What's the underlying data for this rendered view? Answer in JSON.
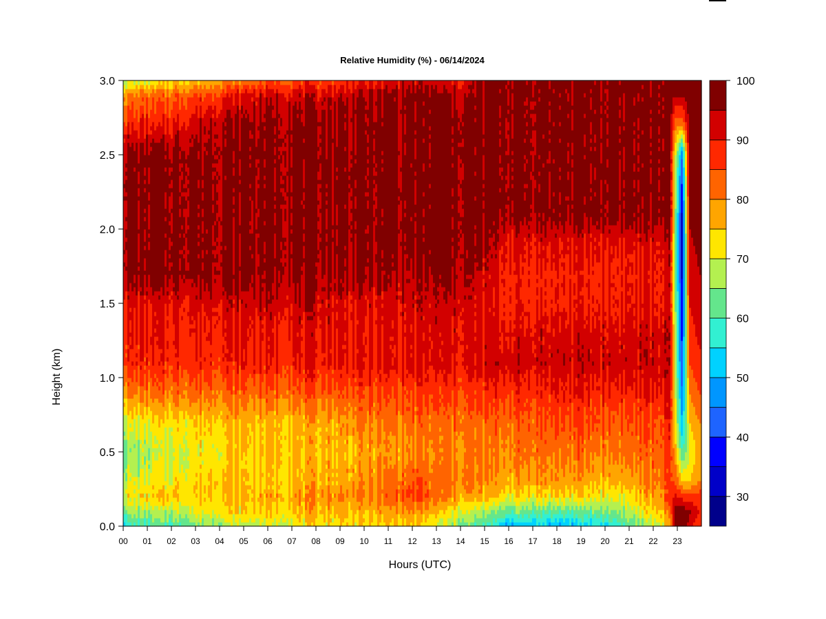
{
  "chart_data": {
    "type": "heatmap",
    "title": "Relative Humidity (%) - 06/14/2024",
    "xlabel": "Hours (UTC)",
    "ylabel": "Height (km)",
    "xlim": [
      0,
      24
    ],
    "ylim": [
      0,
      3
    ],
    "x_ticks": [
      "00",
      "01",
      "02",
      "03",
      "04",
      "05",
      "06",
      "07",
      "08",
      "09",
      "10",
      "11",
      "12",
      "13",
      "14",
      "15",
      "16",
      "17",
      "18",
      "19",
      "20",
      "21",
      "22",
      "23"
    ],
    "y_ticks": [
      "0.0",
      "0.5",
      "1.0",
      "1.5",
      "2.0",
      "2.5",
      "3.0"
    ],
    "colorbar": {
      "range": [
        25,
        100
      ],
      "labels": [
        "30",
        "40",
        "50",
        "60",
        "70",
        "80",
        "90",
        "100"
      ],
      "levels": [
        25,
        30,
        35,
        40,
        45,
        50,
        55,
        60,
        65,
        70,
        75,
        80,
        85,
        90,
        95,
        100
      ],
      "colors": [
        "#00008B",
        "#0000C8",
        "#0000FF",
        "#1E64FF",
        "#0096FF",
        "#00D2FF",
        "#32F0D2",
        "#64E68C",
        "#B4F050",
        "#FFE600",
        "#FFA500",
        "#FF6400",
        "#FF2800",
        "#D20000",
        "#800000"
      ]
    },
    "profile_heights_km": [
      0.0,
      0.1,
      0.2,
      0.3,
      0.5,
      0.7,
      0.9,
      1.1,
      1.3,
      1.5,
      1.7,
      1.9,
      2.1,
      2.3,
      2.5,
      2.7,
      2.9,
      3.0
    ],
    "profiles": [
      {
        "hour": 0,
        "rh": [
          57,
          65,
          72,
          69,
          64,
          70,
          80,
          88,
          89,
          91,
          97,
          97,
          97,
          97,
          97,
          88,
          80,
          67
        ]
      },
      {
        "hour": 2,
        "rh": [
          60,
          68,
          75,
          72,
          69,
          73,
          82,
          88,
          89,
          91,
          97,
          97,
          97,
          97,
          97,
          90,
          83,
          73
        ]
      },
      {
        "hour": 4,
        "rh": [
          66,
          74,
          75,
          76,
          73,
          76,
          83,
          89,
          90,
          93,
          97,
          97,
          97,
          97,
          97,
          96,
          88,
          78
        ]
      },
      {
        "hour": 6,
        "rh": [
          70,
          73,
          77,
          74,
          76,
          76,
          83,
          89,
          90,
          93,
          97,
          97,
          97,
          97,
          97,
          97,
          93,
          84
        ]
      },
      {
        "hour": 8,
        "rh": [
          72,
          77,
          79,
          77,
          76,
          77,
          84,
          90,
          91,
          93,
          96,
          97,
          97,
          97,
          97,
          97,
          93,
          86
        ]
      },
      {
        "hour": 10,
        "rh": [
          73,
          76,
          80,
          78,
          77,
          80,
          85,
          90,
          90,
          91,
          96,
          97,
          97,
          97,
          97,
          97,
          95,
          88
        ]
      },
      {
        "hour": 12,
        "rh": [
          75,
          79,
          86,
          84,
          79,
          82,
          86,
          91,
          91,
          92,
          94,
          97,
          97,
          97,
          97,
          97,
          97,
          92
        ]
      },
      {
        "hour": 13,
        "rh": [
          69,
          75,
          82,
          82,
          80,
          82,
          86,
          91,
          91,
          93,
          96,
          97,
          97,
          97,
          97,
          97,
          97,
          92
        ]
      },
      {
        "hour": 14,
        "rh": [
          64,
          71,
          78,
          81,
          80,
          82,
          86,
          91,
          91,
          93,
          96,
          97,
          97,
          97,
          97,
          97,
          94,
          89
        ]
      },
      {
        "hour": 15,
        "rh": [
          59,
          66,
          76,
          79,
          80,
          82,
          87,
          92,
          91,
          91,
          92,
          96,
          97,
          97,
          97,
          97,
          97,
          97
        ]
      },
      {
        "hour": 16,
        "rh": [
          50,
          62,
          73,
          77,
          81,
          83,
          88,
          93,
          91,
          89,
          89,
          91,
          97,
          97,
          97,
          97,
          97,
          97
        ]
      },
      {
        "hour": 17,
        "rh": [
          53,
          63,
          73,
          79,
          82,
          84,
          88,
          93,
          92,
          89,
          89,
          91,
          97,
          97,
          97,
          97,
          97,
          97
        ]
      },
      {
        "hour": 18,
        "rh": [
          50,
          62,
          73,
          78,
          82,
          85,
          89,
          93,
          92,
          89,
          89,
          91,
          97,
          97,
          97,
          97,
          97,
          97
        ]
      },
      {
        "hour": 19,
        "rh": [
          52,
          62,
          73,
          77,
          82,
          85,
          89,
          93,
          92,
          89,
          89,
          91,
          97,
          97,
          97,
          97,
          97,
          97
        ]
      },
      {
        "hour": 20,
        "rh": [
          55,
          64,
          72,
          76,
          81,
          84,
          89,
          93,
          92,
          89,
          89,
          91,
          97,
          97,
          97,
          97,
          97,
          97
        ]
      },
      {
        "hour": 21,
        "rh": [
          60,
          68,
          72,
          77,
          82,
          84,
          89,
          93,
          92,
          90,
          89,
          91,
          97,
          97,
          97,
          97,
          97,
          97
        ]
      },
      {
        "hour": 22,
        "rh": [
          68,
          73,
          78,
          80,
          83,
          85,
          90,
          93,
          92,
          90,
          90,
          91,
          97,
          97,
          97,
          97,
          97,
          97
        ]
      },
      {
        "hour": 22.7,
        "rh": [
          75,
          80,
          84,
          85,
          86,
          87,
          91,
          93,
          93,
          91,
          91,
          92,
          97,
          97,
          97,
          97,
          97,
          97
        ]
      },
      {
        "hour": 22.9,
        "rh": [
          98,
          98,
          92,
          85,
          78,
          74,
          72,
          70,
          68,
          68,
          67,
          67,
          68,
          70,
          72,
          82,
          95,
          97
        ]
      },
      {
        "hour": 23.2,
        "rh": [
          97,
          99,
          88,
          75,
          60,
          50,
          45,
          40,
          38,
          36,
          33,
          32,
          33,
          38,
          45,
          80,
          96,
          97
        ]
      },
      {
        "hour": 23.5,
        "rh": [
          94,
          96,
          86,
          75,
          69,
          75,
          80,
          85,
          88,
          90,
          92,
          94,
          96,
          97,
          97,
          97,
          97,
          97
        ]
      },
      {
        "hour": 23.9,
        "rh": [
          85,
          90,
          88,
          80,
          78,
          80,
          85,
          89,
          91,
          93,
          95,
          96,
          97,
          97,
          97,
          97,
          97,
          97
        ]
      }
    ]
  }
}
